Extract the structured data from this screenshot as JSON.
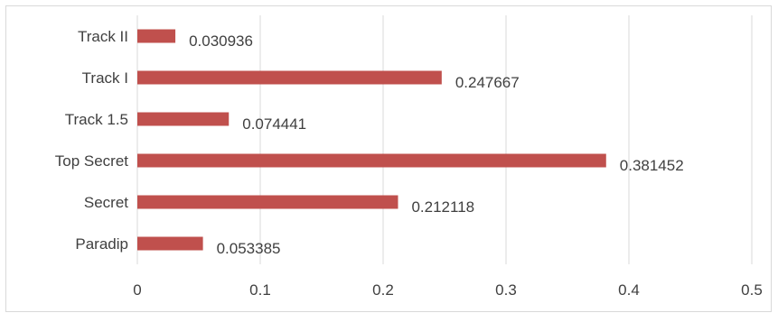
{
  "chart_data": {
    "type": "bar",
    "orientation": "horizontal",
    "title": "",
    "xlabel": "",
    "ylabel": "",
    "categories": [
      "Paradip",
      "Secret",
      "Top Secret",
      "Track 1.5",
      "Track I",
      "Track II"
    ],
    "values": [
      0.053385,
      0.212118,
      0.381452,
      0.074441,
      0.247667,
      0.030936
    ],
    "data_labels": [
      "0.053385",
      "0.212118",
      "0.381452",
      "0.074441",
      "0.247667",
      "0.030936"
    ],
    "xlim": [
      0,
      0.5
    ],
    "x_ticks": [
      0,
      0.1,
      0.2,
      0.3,
      0.4,
      0.5
    ],
    "x_tick_labels": [
      "0",
      "0.1",
      "0.2",
      "0.3",
      "0.4",
      "0.5"
    ],
    "grid": "vertical",
    "legend": "none",
    "bar_color": "#c0504d",
    "grid_color": "#d9d9d9",
    "text_color": "#404040"
  }
}
